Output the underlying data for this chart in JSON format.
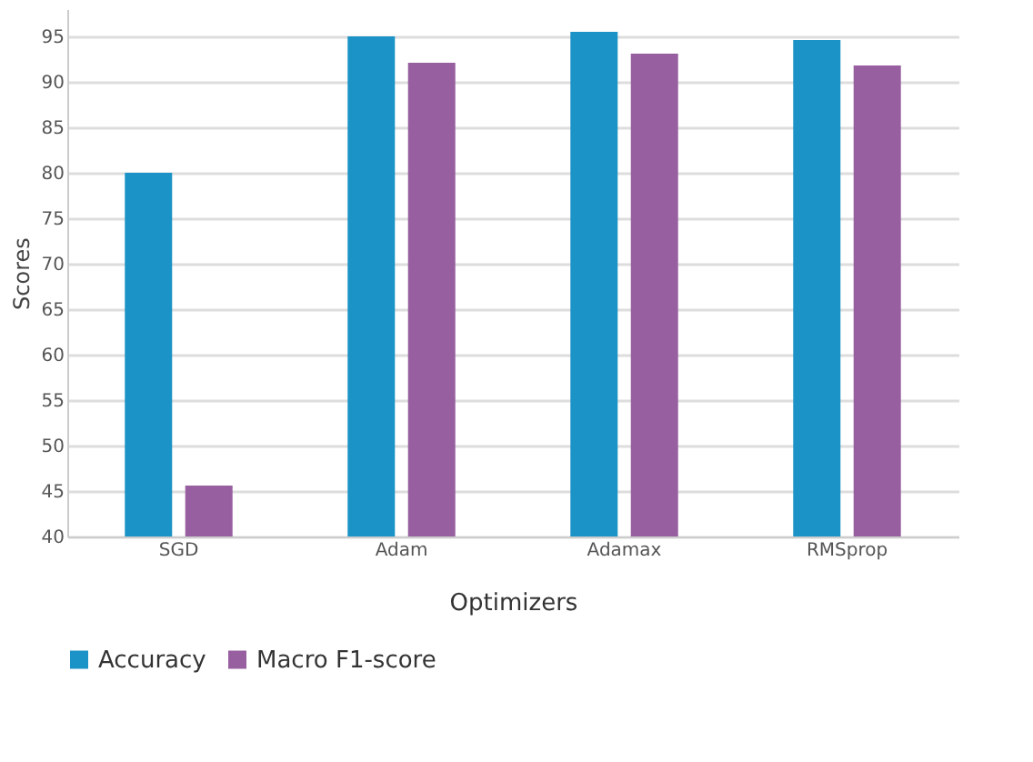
{
  "chart_data": {
    "type": "bar",
    "xlabel": "Optimizers",
    "ylabel": "Scores",
    "categories": [
      "SGD",
      "Adam",
      "Adamax",
      "RMSprop"
    ],
    "series": [
      {
        "name": "Accuracy",
        "color": "#1b93c6",
        "values": [
          80,
          95,
          95.5,
          94.6
        ]
      },
      {
        "name": "Macro F1-score",
        "color": "#975fa0",
        "values": [
          45.6,
          92.1,
          93.1,
          91.8
        ]
      }
    ],
    "ylim": [
      40,
      98
    ],
    "yticks": [
      40,
      45,
      50,
      55,
      60,
      65,
      70,
      75,
      80,
      85,
      90,
      95
    ],
    "grid": "y",
    "legend": "bottom"
  }
}
